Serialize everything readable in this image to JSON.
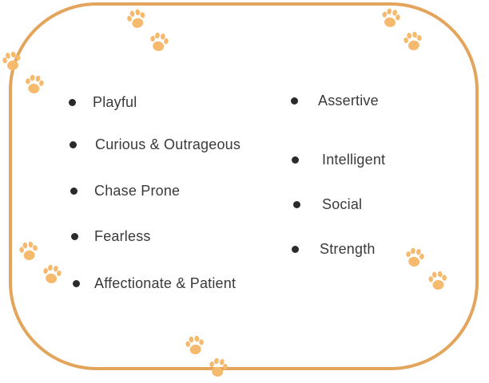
{
  "colors": {
    "frame": "#e3a55c",
    "paw": "#f6ba6e",
    "bullet": "#2b2b2b",
    "text": "#3a3a3a"
  },
  "left_traits": [
    "Playful",
    "Curious & Outrageous",
    "Chase Prone",
    "Fearless",
    "Affectionate & Patient"
  ],
  "right_traits": [
    "Assertive",
    "Intelligent",
    "Social",
    "Strength"
  ],
  "decoration": {
    "icon": "paw-print-icon"
  }
}
